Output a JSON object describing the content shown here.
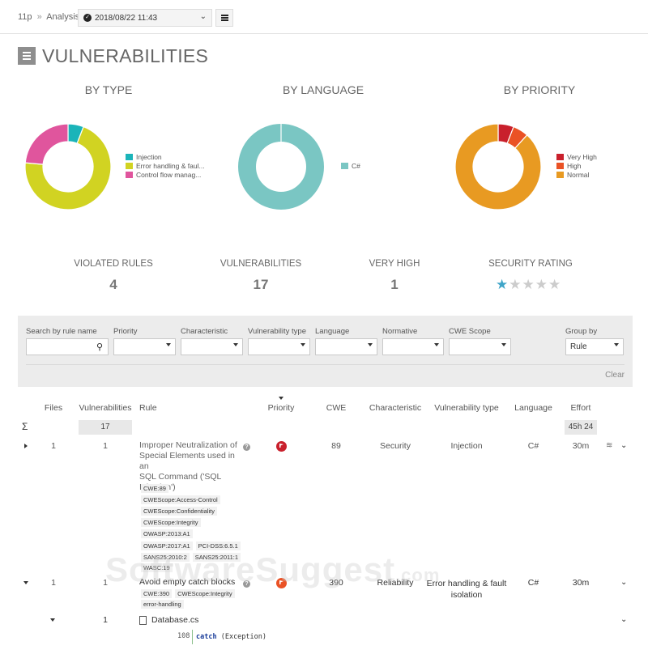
{
  "breadcrumb": {
    "project": "11p",
    "separator": "»",
    "section": "Analysis"
  },
  "snapshot": {
    "value": "2018/08/22 11:43"
  },
  "page_title": "VULNERABILITIES",
  "charts": {
    "by_type": {
      "title": "BY TYPE",
      "legend": [
        "Injection",
        "Error handling & faul...",
        "Control flow manag..."
      ]
    },
    "by_language": {
      "title": "BY LANGUAGE",
      "legend": [
        "C#"
      ]
    },
    "by_priority": {
      "title": "BY PRIORITY",
      "legend": [
        "Very High",
        "High",
        "Normal"
      ]
    }
  },
  "chart_data": [
    {
      "type": "pie",
      "title": "BY TYPE",
      "categories": [
        "Injection",
        "Error handling & faul...",
        "Control flow manag..."
      ],
      "values": [
        1,
        12,
        4
      ],
      "colors": [
        "#1bb4b9",
        "#d1d322",
        "#e0559d"
      ]
    },
    {
      "type": "pie",
      "title": "BY LANGUAGE",
      "categories": [
        "C#"
      ],
      "values": [
        17
      ],
      "colors": [
        "#7ac6c3"
      ]
    },
    {
      "type": "pie",
      "title": "BY PRIORITY",
      "categories": [
        "Very High",
        "High",
        "Normal"
      ],
      "values": [
        1,
        1,
        15
      ],
      "colors": [
        "#c9202c",
        "#ea5225",
        "#e89a22"
      ]
    }
  ],
  "kpis": {
    "violated_rules": {
      "label": "VIOLATED RULES",
      "value": "4"
    },
    "vulnerabilities": {
      "label": "VULNERABILITIES",
      "value": "17"
    },
    "very_high": {
      "label": "VERY HIGH",
      "value": "1"
    },
    "security_rating": {
      "label": "SECURITY RATING",
      "stars": 1,
      "max_stars": 5
    }
  },
  "filters": {
    "search_label": "Search by rule name",
    "search_value": "",
    "priority_label": "Priority",
    "characteristic_label": "Characteristic",
    "vuln_type_label": "Vulnerability type",
    "language_label": "Language",
    "normative_label": "Normative",
    "cwe_scope_label": "CWE Scope",
    "group_by_label": "Group by",
    "group_by_value": "Rule",
    "clear_label": "Clear"
  },
  "table": {
    "headers": {
      "files": "Files",
      "vulnerabilities": "Vulnerabilities",
      "rule": "Rule",
      "priority": "Priority",
      "cwe": "CWE",
      "characteristic": "Characteristic",
      "vuln_type": "Vulnerability type",
      "language": "Language",
      "effort": "Effort"
    },
    "sigma": "Σ",
    "total_vulnerabilities": "17",
    "total_effort": "45h 24",
    "rows": [
      {
        "files": "1",
        "vulnerabilities": "1",
        "rule_lines": [
          "Improper Neutralization of",
          "Special Elements used in an",
          "SQL Command ('SQL",
          "Injection')"
        ],
        "tags": [
          "CWE:89",
          "CWEScope:Access-Control",
          "CWEScope:Confidentiality",
          "CWEScope:Integrity",
          "OWASP:2013:A1",
          "OWASP:2017:A1",
          "PCI-DSS:6.5.1",
          "SANS25:2010:2",
          "SANS25:2011:1",
          "WASC:19"
        ],
        "cwe": "89",
        "characteristic": "Security",
        "vuln_type": "Injection",
        "language": "C#",
        "effort": "30m"
      },
      {
        "files": "1",
        "vulnerabilities": "1",
        "rule_lines": [
          "Avoid empty catch blocks"
        ],
        "tags": [
          "CWE:390",
          "CWEScope:Integrity",
          "error-handling"
        ],
        "cwe": "390",
        "characteristic": "Reliability",
        "vuln_type_lines": [
          "Error handling & fault",
          "isolation"
        ],
        "language": "C#",
        "effort": "30m"
      }
    ],
    "file_row": {
      "vulnerabilities": "1",
      "file_name": "Database.cs",
      "line_number": "108",
      "code_keyword": "catch",
      "code_rest": " (Exception)"
    }
  },
  "colors": {
    "very_high": "#c9202c",
    "high": "#ea5225",
    "star_on": "#3fa5c8"
  },
  "watermark": {
    "main": "SoftwareSuggest",
    "suffix": ".com"
  }
}
